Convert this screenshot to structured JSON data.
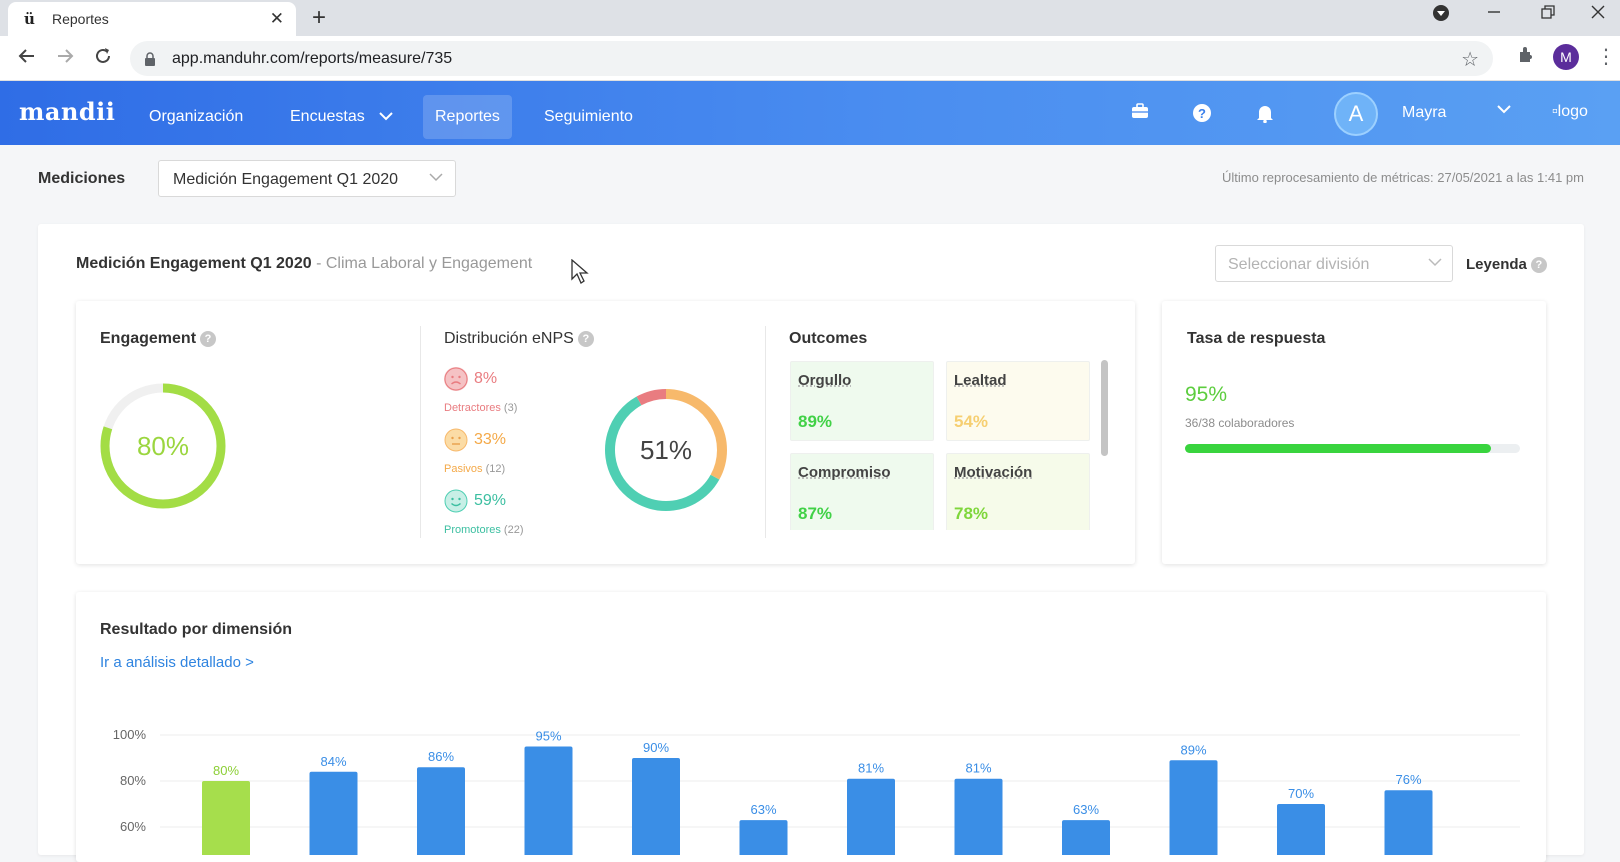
{
  "browser": {
    "tab_title": "Reportes",
    "tab_close": "✕",
    "new_tab": "+",
    "url": "app.manduhr.com/reports/measure/735",
    "profile_initial": "M"
  },
  "header": {
    "brand": "mandii",
    "nav": [
      {
        "label": "Organización"
      },
      {
        "label": "Encuestas"
      },
      {
        "label": "Reportes"
      },
      {
        "label": "Seguimiento"
      }
    ],
    "user_initial": "A",
    "user_name": "Mayra",
    "logo_alt": "logo"
  },
  "filters": {
    "measurements_label": "Mediciones",
    "measurement_value": "Medición Engagement Q1 2020",
    "reprocess_note": "Último reprocesamiento de métricas: 27/05/2021 a las 1:41 pm"
  },
  "report": {
    "title": "Medición Engagement Q1 2020",
    "subtitle": " - Clima Laboral y Engagement",
    "division_placeholder": "Seleccionar división",
    "legend_label": "Leyenda"
  },
  "engagement": {
    "title": "Engagement",
    "value": "80%",
    "fraction": 0.8
  },
  "enps": {
    "title": "Distribución eNPS",
    "center": "51%",
    "rows": [
      {
        "pct": "8%",
        "label": "Detractores",
        "count": "(3)",
        "fraction": 0.08,
        "color": "#e97c80"
      },
      {
        "pct": "33%",
        "label": "Pasivos",
        "count": "(12)",
        "fraction": 0.33,
        "color": "#f7b96b"
      },
      {
        "pct": "59%",
        "label": "Promotores",
        "count": "(22)",
        "fraction": 0.59,
        "color": "#4fcfb3"
      }
    ]
  },
  "outcomes": {
    "title": "Outcomes",
    "items": [
      {
        "name": "Orgullo",
        "value": "89%",
        "color": "#41d147",
        "bg": "#effaee"
      },
      {
        "name": "Lealtad",
        "value": "54%",
        "color": "#f6cf72",
        "bg": "#fdfbee"
      },
      {
        "name": "Compromiso",
        "value": "87%",
        "color": "#41d147",
        "bg": "#effaee"
      },
      {
        "name": "Motivación",
        "value": "78%",
        "color": "#7fd63c",
        "bg": "#f6fbea"
      }
    ]
  },
  "response_rate": {
    "title": "Tasa de respuesta",
    "value": "95%",
    "detail": "36/38 colaboradores",
    "fraction": 0.95
  },
  "dimensions": {
    "title": "Resultado por dimensión",
    "link": "Ir a análisis detallado >"
  },
  "chart_data": {
    "type": "bar",
    "y_ticks": [
      "100%",
      "80%",
      "60%"
    ],
    "ylim": [
      60,
      100
    ],
    "values": [
      80,
      84,
      86,
      95,
      90,
      63,
      81,
      81,
      63,
      89,
      70,
      76
    ],
    "labels": [
      "80%",
      "84%",
      "86%",
      "95%",
      "90%",
      "63%",
      "81%",
      "81%",
      "63%",
      "89%",
      "70%",
      "76%"
    ],
    "colors": [
      "#a6de4c",
      "#3a8ee6",
      "#3a8ee6",
      "#3a8ee6",
      "#3a8ee6",
      "#3a8ee6",
      "#3a8ee6",
      "#3a8ee6",
      "#3a8ee6",
      "#3a8ee6",
      "#3a8ee6",
      "#3a8ee6"
    ],
    "label_colors": [
      "#8ccf36",
      "#3a8ee6",
      "#3a8ee6",
      "#3a8ee6",
      "#3a8ee6",
      "#3a8ee6",
      "#3a8ee6",
      "#3a8ee6",
      "#3a8ee6",
      "#3a8ee6",
      "#3a8ee6",
      "#3a8ee6"
    ]
  }
}
